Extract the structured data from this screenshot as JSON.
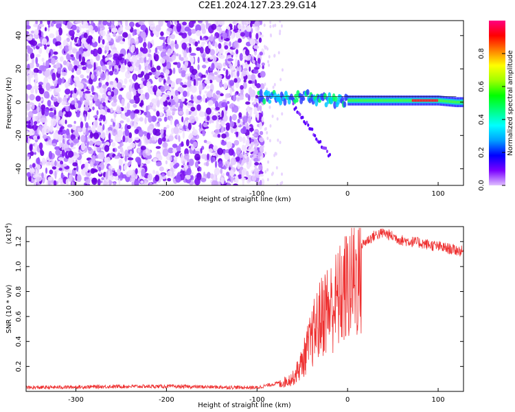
{
  "title": "C2E1.2024.127.23.29.G14",
  "chart_data": [
    {
      "type": "heatmap",
      "xlabel": "Height of straight line (km)",
      "ylabel": "Frequency (Hz)",
      "xlim": [
        -355,
        128
      ],
      "ylim": [
        -50,
        49
      ],
      "xticks": [
        -300,
        -200,
        -100,
        0,
        100
      ],
      "yticks": [
        40,
        20,
        0,
        -20,
        -40
      ],
      "noise_region_x": [
        -355,
        -93
      ],
      "signal_track": {
        "x": [
          -100,
          -80,
          -60,
          -40,
          -20,
          0,
          20,
          40,
          60,
          80,
          100,
          120
        ],
        "frequency_center": [
          3,
          3,
          3,
          3,
          1,
          1,
          1,
          1,
          1,
          1,
          1,
          0
        ]
      },
      "colorbar": {
        "label": "Normalized spectral amplitude",
        "range": [
          0,
          1
        ],
        "ticks": [
          0.0,
          0.2,
          0.4,
          0.6,
          0.8
        ],
        "colors": [
          "#e0c0ff",
          "#7a00ff",
          "#0000ff",
          "#00a0ff",
          "#00ffff",
          "#00ff80",
          "#00ff00",
          "#a0ff00",
          "#ffff00",
          "#ff8000",
          "#ff0000",
          "#ff0080"
        ]
      }
    },
    {
      "type": "line",
      "xlabel": "Height of straight line (km)",
      "ylabel": "SNR (10 * v/v)",
      "yscale_note": "(x10",
      "yscale_exp": "4",
      "yscale_close": ")",
      "xlim": [
        -355,
        128
      ],
      "ylim": [
        0,
        1.32
      ],
      "xticks": [
        -300,
        -200,
        -100,
        0,
        100
      ],
      "yticks": [
        0.2,
        0.4,
        0.6,
        0.8,
        1.0,
        1.2
      ],
      "series": [
        {
          "color": "#ee3030",
          "x": [
            -355,
            -300,
            -250,
            -200,
            -150,
            -100,
            -75,
            -60,
            -50,
            -45,
            -40,
            -35,
            -30,
            -25,
            -20,
            -15,
            -10,
            0,
            10,
            20,
            30,
            40,
            50,
            60,
            80,
            100,
            128
          ],
          "y": [
            0.03,
            0.035,
            0.04,
            0.04,
            0.035,
            0.03,
            0.07,
            0.13,
            0.28,
            0.4,
            0.5,
            0.62,
            0.7,
            0.8,
            0.8,
            0.85,
            0.9,
            1.02,
            1.13,
            1.2,
            1.25,
            1.27,
            1.24,
            1.21,
            1.19,
            1.16,
            1.12
          ]
        }
      ]
    }
  ]
}
